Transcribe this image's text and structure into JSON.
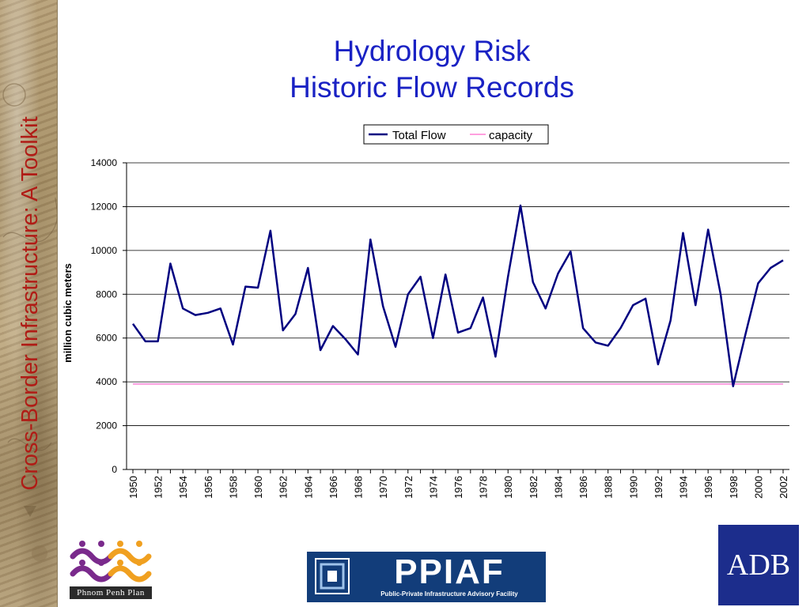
{
  "sidebar": {
    "title": "Cross-Border Infrastructure: A Toolkit"
  },
  "page": {
    "title_line1": "Hydrology Risk",
    "title_line2": "Historic Flow Records"
  },
  "logos": {
    "phnom_penh": "Phnom Penh Plan",
    "ppiaf_name": "PPIAF",
    "ppiaf_subtitle": "Public-Private Infrastructure Advisory Facility",
    "adb": "ADB"
  },
  "colors": {
    "title": "#1a22c4",
    "sidebar_title": "#b01c16",
    "total_flow": "#000080",
    "capacity": "#ff66cc"
  },
  "chart_data": {
    "type": "line",
    "title": "",
    "xlabel": "",
    "ylabel": "million cubic meters",
    "ylim": [
      0,
      14000
    ],
    "yticks": [
      0,
      2000,
      4000,
      6000,
      8000,
      10000,
      12000,
      14000
    ],
    "xtick_labels": [
      "1950",
      "1952",
      "1954",
      "1956",
      "1958",
      "1960",
      "1962",
      "1964",
      "1966",
      "1968",
      "1970",
      "1972",
      "1974",
      "1976",
      "1978",
      "1980",
      "1982",
      "1984",
      "1986",
      "1988",
      "1990",
      "1992",
      "1994",
      "1996",
      "1998",
      "2000",
      "2002"
    ],
    "grid": "horizontal",
    "legend": "top",
    "x": [
      1950,
      1951,
      1952,
      1953,
      1954,
      1955,
      1956,
      1957,
      1958,
      1959,
      1960,
      1961,
      1962,
      1963,
      1964,
      1965,
      1966,
      1967,
      1968,
      1969,
      1970,
      1971,
      1972,
      1973,
      1974,
      1975,
      1976,
      1977,
      1978,
      1979,
      1980,
      1981,
      1982,
      1983,
      1984,
      1985,
      1986,
      1987,
      1988,
      1989,
      1990,
      1991,
      1992,
      1993,
      1994,
      1995,
      1996,
      1997,
      1998,
      1999,
      2000,
      2001,
      2002
    ],
    "series": [
      {
        "name": "Total Flow",
        "color": "#000080",
        "values": [
          6650,
          5850,
          5850,
          9400,
          7350,
          7050,
          7150,
          7350,
          5700,
          8350,
          8300,
          10900,
          6350,
          7100,
          9200,
          5450,
          6550,
          5950,
          5250,
          10500,
          7450,
          5600,
          8000,
          8800,
          6000,
          8900,
          6250,
          6450,
          7850,
          5150,
          8800,
          12050,
          8550,
          7350,
          8950,
          9950,
          6450,
          5800,
          5650,
          6450,
          7500,
          7800,
          4800,
          6800,
          10800,
          7500,
          10950,
          8000,
          3800,
          6200,
          8500,
          9200,
          9550
        ]
      },
      {
        "name": "capacity",
        "color": "#ff66cc",
        "values": [
          3900,
          3900,
          3900,
          3900,
          3900,
          3900,
          3900,
          3900,
          3900,
          3900,
          3900,
          3900,
          3900,
          3900,
          3900,
          3900,
          3900,
          3900,
          3900,
          3900,
          3900,
          3900,
          3900,
          3900,
          3900,
          3900,
          3900,
          3900,
          3900,
          3900,
          3900,
          3900,
          3900,
          3900,
          3900,
          3900,
          3900,
          3900,
          3900,
          3900,
          3900,
          3900,
          3900,
          3900,
          3900,
          3900,
          3900,
          3900,
          3900,
          3900,
          3900,
          3900,
          3900
        ]
      }
    ]
  }
}
